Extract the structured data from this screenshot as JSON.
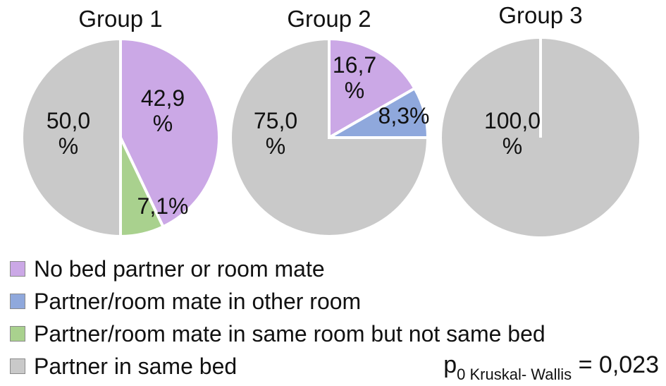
{
  "chart_data": [
    {
      "type": "pie",
      "title": "Group 1",
      "slices": [
        {
          "category": "No bed partner or room mate",
          "value": 42.9,
          "label": "42,9\n%"
        },
        {
          "category": "Partner/room mate in same room but not same bed",
          "value": 7.1,
          "label": "7,1%"
        },
        {
          "category": "Partner in same bed",
          "value": 50.0,
          "label": "50,0\n%"
        }
      ]
    },
    {
      "type": "pie",
      "title": "Group 2",
      "slices": [
        {
          "category": "No bed partner or room mate",
          "value": 16.7,
          "label": "16,7\n%"
        },
        {
          "category": "Partner/room mate in other room",
          "value": 8.3,
          "label": "8,3%"
        },
        {
          "category": "Partner in same bed",
          "value": 75.0,
          "label": "75,0\n%"
        }
      ]
    },
    {
      "type": "pie",
      "title": "Group 3",
      "slices": [
        {
          "category": "Partner in same bed",
          "value": 100.0,
          "label": "100,0\n%"
        }
      ]
    }
  ],
  "legend": [
    {
      "label": "No bed partner or room mate",
      "color": "#cba8e6"
    },
    {
      "label": "Partner/room mate in other room",
      "color": "#8fa8dc"
    },
    {
      "label": "Partner/room mate in same room but not same bed",
      "color": "#a9d18e"
    },
    {
      "label": "Partner in same bed",
      "color": "#c9c9c9"
    }
  ],
  "pvalue": {
    "prefix": "p",
    "subscript": "0 Kruskal- Wallis",
    "suffix": " = 0,023"
  }
}
